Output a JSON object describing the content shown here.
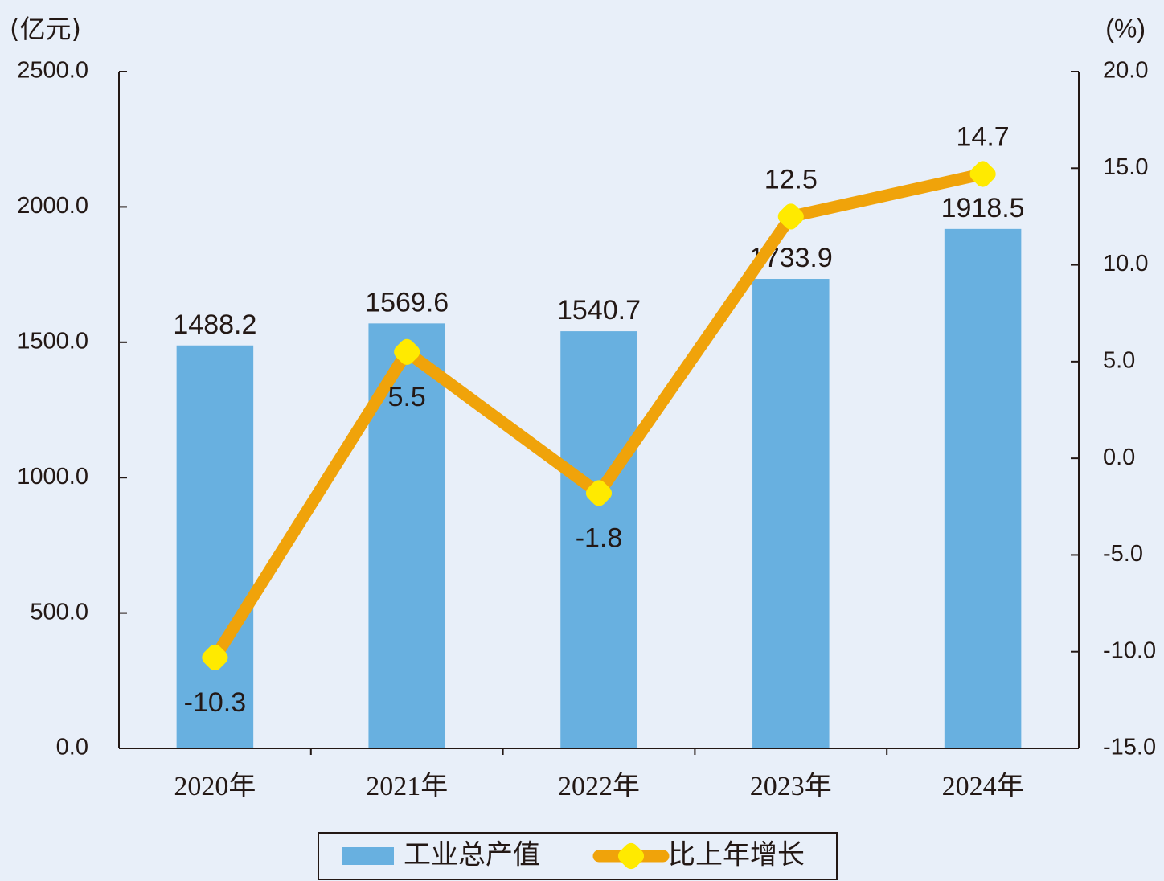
{
  "chart_data": {
    "type": "bar",
    "y_label": "(亿元)",
    "y2_label": "(%)",
    "categories": [
      "2020年",
      "2021年",
      "2022年",
      "2023年",
      "2024年"
    ],
    "series": [
      {
        "name": "工业总产值",
        "type": "bar",
        "color": "#68b0e0",
        "values": [
          1488.2,
          1569.6,
          1540.7,
          1733.9,
          1918.5
        ]
      },
      {
        "name": "比上年增长",
        "type": "line",
        "axis": "y2",
        "color": "#f0a30a",
        "marker_color": "#ffea00",
        "values": [
          -10.3,
          5.5,
          -1.8,
          12.5,
          14.7
        ]
      }
    ],
    "ylim": [
      0,
      2500
    ],
    "yticks": [
      {
        "value": 0,
        "label": "0.0"
      },
      {
        "value": 500,
        "label": "500.0"
      },
      {
        "value": 1000,
        "label": "1000.0"
      },
      {
        "value": 1500,
        "label": "1500.0"
      },
      {
        "value": 2000,
        "label": "2000.0"
      },
      {
        "value": 2500,
        "label": "2500.0"
      }
    ],
    "y2lim": [
      -15,
      20
    ],
    "y2ticks": [
      {
        "value": -15,
        "label": "-15.0"
      },
      {
        "value": -10,
        "label": "-10.0"
      },
      {
        "value": -5,
        "label": "-5.0"
      },
      {
        "value": 0,
        "label": "0.0"
      },
      {
        "value": 5,
        "label": "5.0"
      },
      {
        "value": 10,
        "label": "10.0"
      },
      {
        "value": 15,
        "label": "15.0"
      },
      {
        "value": 20,
        "label": "20.0"
      }
    ],
    "legend": "bottom"
  }
}
